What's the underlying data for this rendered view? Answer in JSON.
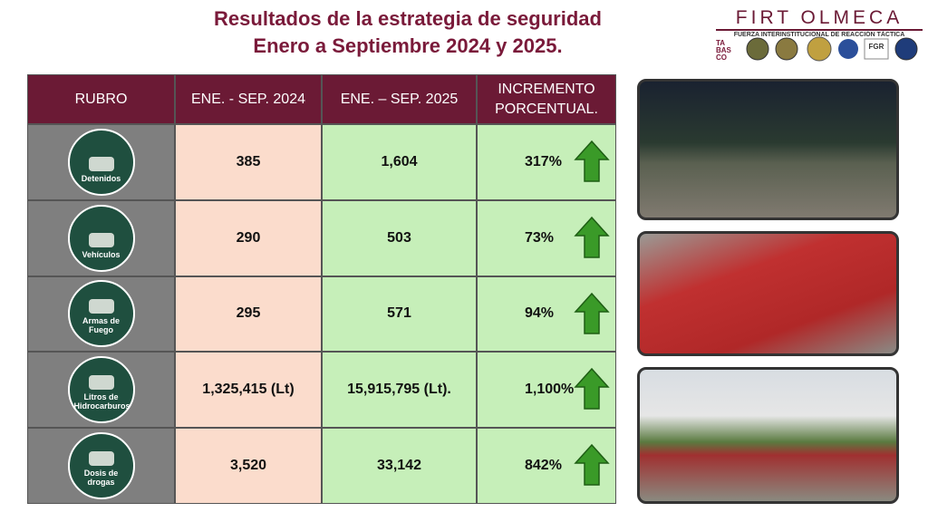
{
  "header": {
    "title_lines": [
      "Resultados de la estrategia de seguridad",
      "Enero a Septiembre 2024 y 2025."
    ]
  },
  "logo": {
    "name": "FIRT OLMECA",
    "subtitle": "FUERZA INTERINSTITUCIONAL DE REACCIÓN TÁCTICA",
    "badges": [
      "TA",
      "BAS",
      "CO",
      "FGR"
    ]
  },
  "table": {
    "columns": [
      "RUBRO",
      "ENE. - SEP. 2024",
      "ENE. – SEP. 2025",
      "INCREMENTO PORCENTUAL."
    ],
    "rows": [
      [
        "Detenidos",
        "385",
        "1,604",
        "317%"
      ],
      [
        "Vehículos",
        "290",
        "503",
        "73%"
      ],
      [
        "Armas de Fuego",
        "295",
        "571",
        "94%"
      ],
      [
        "Litros de Hidrocarburos",
        "1,325,415 (Lt)",
        "15,915,795 (Lt).",
        "1,100%"
      ],
      [
        "Dosis de drogas",
        "3,520",
        "33,142",
        "842%"
      ]
    ]
  }
}
